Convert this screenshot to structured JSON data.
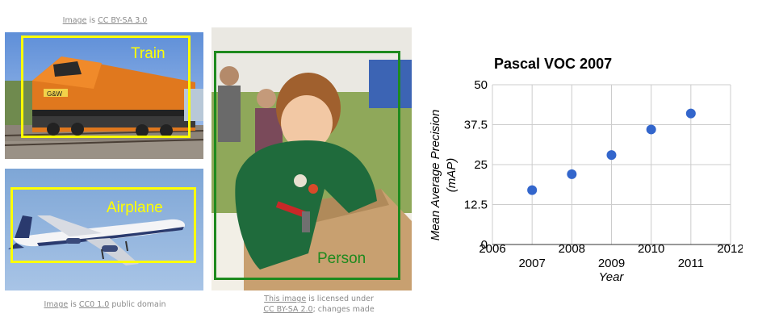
{
  "credits": {
    "train": {
      "image": "Image",
      "text": "is",
      "license": "CC BY-SA 3.0"
    },
    "airplane": {
      "image": "Image",
      "text": "is",
      "license": "CC0 1.0",
      "suffix": "public domain"
    },
    "person": {
      "image": "This image",
      "text": "is licensed under",
      "license": "CC BY-SA 2.0",
      "suffix": "; changes made"
    }
  },
  "detections": {
    "train": {
      "label": "Train",
      "color": "#ffff00"
    },
    "airplane": {
      "label": "Airplane",
      "color": "#ffff00"
    },
    "person": {
      "label": "Person",
      "color": "#1e8a1e"
    }
  },
  "chart_data": {
    "type": "scatter",
    "title": "Pascal VOC 2007",
    "xlabel": "Year",
    "ylabel_line1": "Mean Average Precision",
    "ylabel_line2": "(mAP)",
    "xlim": [
      2006,
      2012
    ],
    "ylim": [
      0,
      50
    ],
    "xticks_upper": [
      "2006",
      "2008",
      "2010",
      "2012"
    ],
    "xticks_lower": [
      "2007",
      "2009",
      "2011"
    ],
    "yticks": [
      "0",
      "12.5",
      "25",
      "37.5",
      "50"
    ],
    "grid": true,
    "point_color": "#3366cc",
    "points": [
      {
        "x": 2007,
        "y": 17
      },
      {
        "x": 2008,
        "y": 22
      },
      {
        "x": 2009,
        "y": 28
      },
      {
        "x": 2010,
        "y": 36
      },
      {
        "x": 2011,
        "y": 41
      }
    ]
  }
}
